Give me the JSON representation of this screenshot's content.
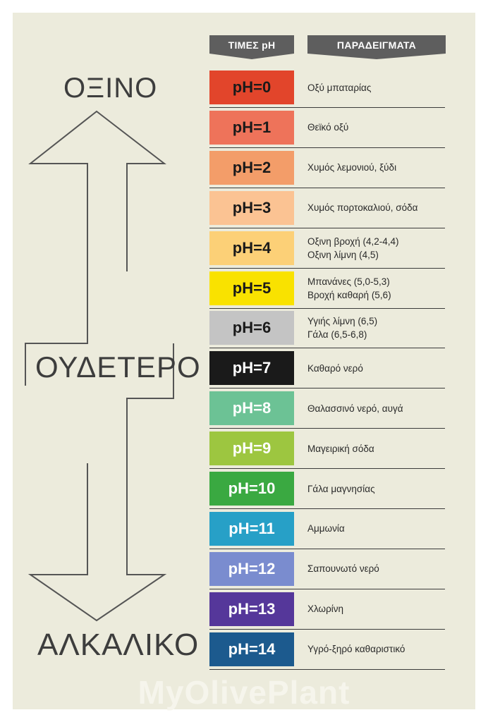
{
  "headers": {
    "values": "ΤΙΜΕΣ pH",
    "examples": "ΠΑΡΑΔΕΙΓΜΑΤΑ"
  },
  "scale_labels": {
    "top": "ΟΞΙΝΟ",
    "middle": "ΟΥΔΕΤΕΡΟ",
    "bottom": "ΑΛΚΑΛΙΚΟ"
  },
  "rows": [
    {
      "ph": "pH=0",
      "examples": [
        "Οξύ μπαταρίας"
      ],
      "color": "#e2452b",
      "text_color": "#1a1a1a"
    },
    {
      "ph": "pH=1",
      "examples": [
        "Θεϊκό οξύ"
      ],
      "color": "#ee735a",
      "text_color": "#1a1a1a"
    },
    {
      "ph": "pH=2",
      "examples": [
        "Χυμός λεμονιού, ξύδι"
      ],
      "color": "#f39d69",
      "text_color": "#1a1a1a"
    },
    {
      "ph": "pH=3",
      "examples": [
        "Χυμός πορτοκαλιού, σόδα"
      ],
      "color": "#fbc393",
      "text_color": "#1a1a1a"
    },
    {
      "ph": "pH=4",
      "examples": [
        "Οξινη βροχή (4,2-4,4)",
        "Οξινη λίμνη (4,5)"
      ],
      "color": "#fcd077",
      "text_color": "#1a1a1a"
    },
    {
      "ph": "pH=5",
      "examples": [
        "Μπανάνες (5,0-5,3)",
        "Βροχή καθαρή (5,6)"
      ],
      "color": "#f9e200",
      "text_color": "#1a1a1a"
    },
    {
      "ph": "pH=6",
      "examples": [
        "Υγιής λίμνη (6,5)",
        "Γάλα (6,5-6,8)"
      ],
      "color": "#c4c4c4",
      "text_color": "#1a1a1a"
    },
    {
      "ph": "pH=7",
      "examples": [
        "Καθαρό νερό"
      ],
      "color": "#1a1a1a",
      "text_color": "#ffffff"
    },
    {
      "ph": "pH=8",
      "examples": [
        "Θαλασσινό νερό, αυγά"
      ],
      "color": "#6cc295",
      "text_color": "#ffffff"
    },
    {
      "ph": "pH=9",
      "examples": [
        "Μαγειρική σόδα"
      ],
      "color": "#9dc640",
      "text_color": "#ffffff"
    },
    {
      "ph": "pH=10",
      "examples": [
        "Γάλα μαγνησίας"
      ],
      "color": "#3aa941",
      "text_color": "#ffffff"
    },
    {
      "ph": "pH=11",
      "examples": [
        "Αμμωνία"
      ],
      "color": "#27a0c7",
      "text_color": "#ffffff"
    },
    {
      "ph": "pH=12",
      "examples": [
        "Σαπουνωτό νερό"
      ],
      "color": "#7a8ccf",
      "text_color": "#ffffff"
    },
    {
      "ph": "pH=13",
      "examples": [
        "Χλωρίνη"
      ],
      "color": "#55379a",
      "text_color": "#ffffff"
    },
    {
      "ph": "pH=14",
      "examples": [
        "Υγρό-ξηρό καθαριστικό"
      ],
      "color": "#1c5a8e",
      "text_color": "#ffffff"
    }
  ],
  "watermark": "MyOlivePlant",
  "colors": {
    "background": "#ecebdc",
    "header_bg": "#5e5e5e",
    "line": "#555555"
  }
}
